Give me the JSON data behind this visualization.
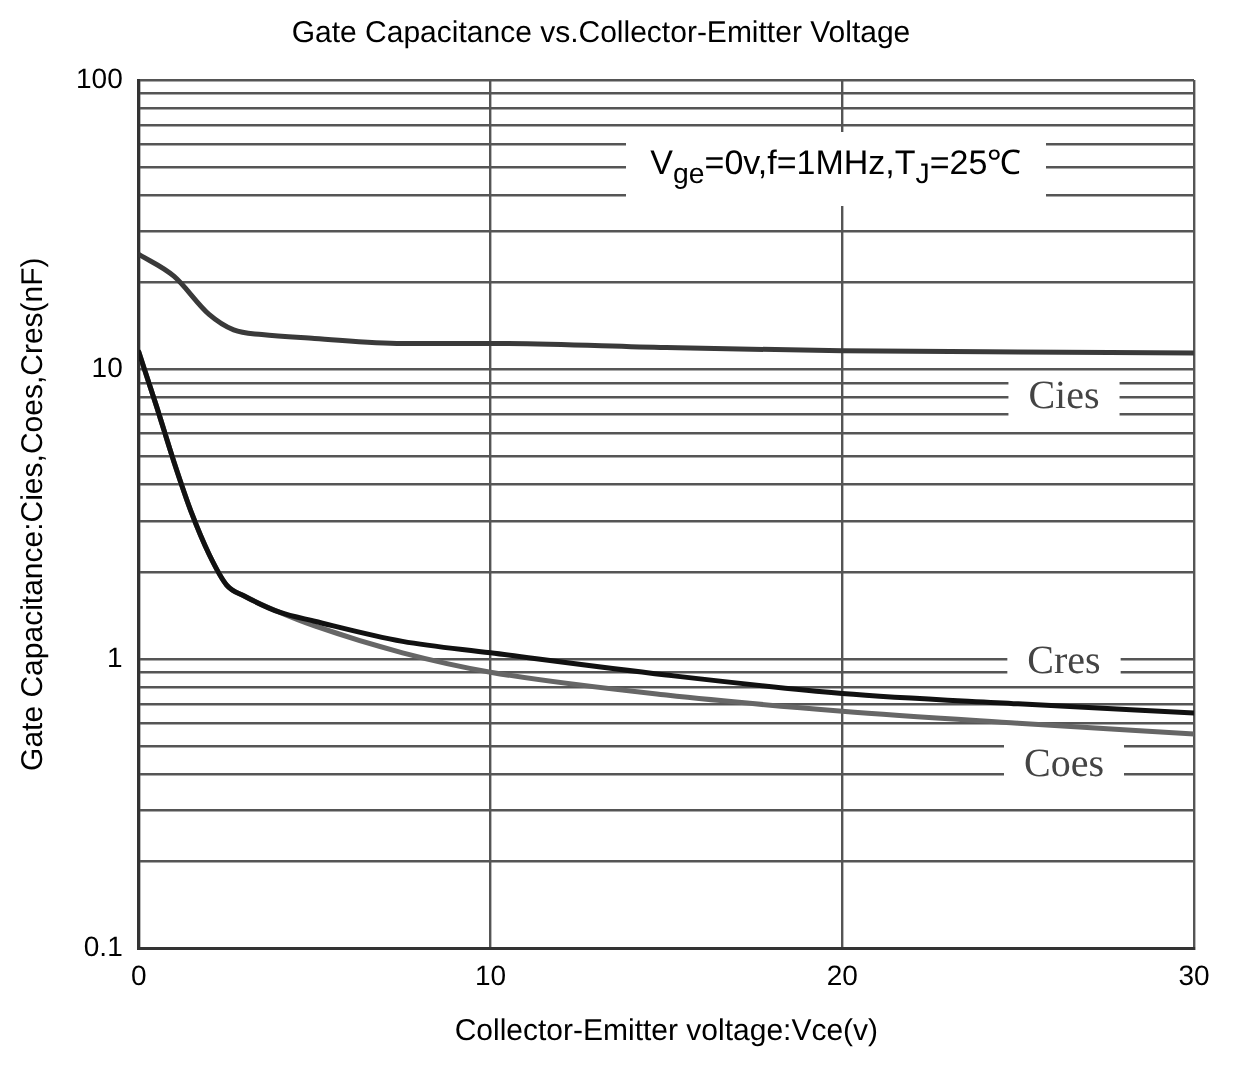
{
  "chart_data": {
    "type": "line",
    "title": "Gate Capacitance vs.Collector-Emitter Voltage",
    "xlabel": "Collector-Emitter voltage:Vce(v)",
    "ylabel": "Gate Capacitance:Cies,Coes,Cres(nF)",
    "annotations": [
      "V$_{ge}$=0v,f=1MHz,T$_{J}$=25℃"
    ],
    "series": [
      {
        "name": "Cies",
        "color": "#3a3a3a",
        "x": [
          0,
          1,
          2,
          2.7,
          3.5,
          5,
          7.5,
          10,
          15,
          20,
          25,
          30
        ],
        "values": [
          25,
          21,
          15.5,
          13.7,
          13.2,
          12.8,
          12.3,
          12.3,
          11.9,
          11.6,
          11.5,
          11.4
        ]
      },
      {
        "name": "Cres",
        "color": "#111111",
        "x": [
          0,
          0.5,
          1,
          1.5,
          2,
          2.5,
          3,
          4,
          5,
          7.5,
          10,
          15,
          20,
          25,
          30
        ],
        "values": [
          11.5,
          7.5,
          4.8,
          3.2,
          2.3,
          1.8,
          1.65,
          1.45,
          1.35,
          1.15,
          1.05,
          0.88,
          0.76,
          0.7,
          0.65
        ]
      },
      {
        "name": "Coes",
        "color": "#666666",
        "x": [
          0,
          0.5,
          1,
          1.5,
          2,
          2.5,
          3,
          4,
          5,
          7.5,
          10,
          15,
          20,
          25,
          30
        ],
        "values": [
          11.5,
          7.5,
          4.8,
          3.2,
          2.3,
          1.8,
          1.65,
          1.45,
          1.3,
          1.05,
          0.9,
          0.75,
          0.66,
          0.6,
          0.55
        ]
      }
    ],
    "xlim": [
      0,
      30
    ],
    "xticks": [
      0,
      10,
      20,
      30
    ],
    "ylim": [
      0.1,
      100
    ],
    "log": true,
    "yticks": [
      0.1,
      {
        "value": 0.2,
        "label": null
      },
      {
        "value": 0.3,
        "label": null
      },
      {
        "value": 0.4,
        "label": null
      },
      {
        "value": 0.5,
        "label": null
      },
      {
        "value": 0.6,
        "label": null
      },
      {
        "value": 0.7,
        "label": null
      },
      {
        "value": 0.8,
        "label": null
      },
      {
        "value": 0.9,
        "label": null
      },
      1,
      {
        "value": 2,
        "label": null
      },
      {
        "value": 3,
        "label": null
      },
      {
        "value": 4,
        "label": null
      },
      {
        "value": 5,
        "label": null
      },
      {
        "value": 6,
        "label": null
      },
      {
        "value": 7,
        "label": null
      },
      {
        "value": 8,
        "label": null
      },
      {
        "value": 9,
        "label": null
      },
      10,
      {
        "value": 20,
        "label": null
      },
      {
        "value": 30,
        "label": null
      },
      {
        "value": 40,
        "label": null
      },
      {
        "value": 50,
        "label": null
      },
      {
        "value": 60,
        "label": null
      },
      {
        "value": 70,
        "label": null
      },
      {
        "value": 80,
        "label": null
      },
      {
        "value": 90,
        "label": null
      },
      100
    ],
    "grid": true,
    "legend": false,
    "marker": "none",
    "line_style": "solid"
  }
}
